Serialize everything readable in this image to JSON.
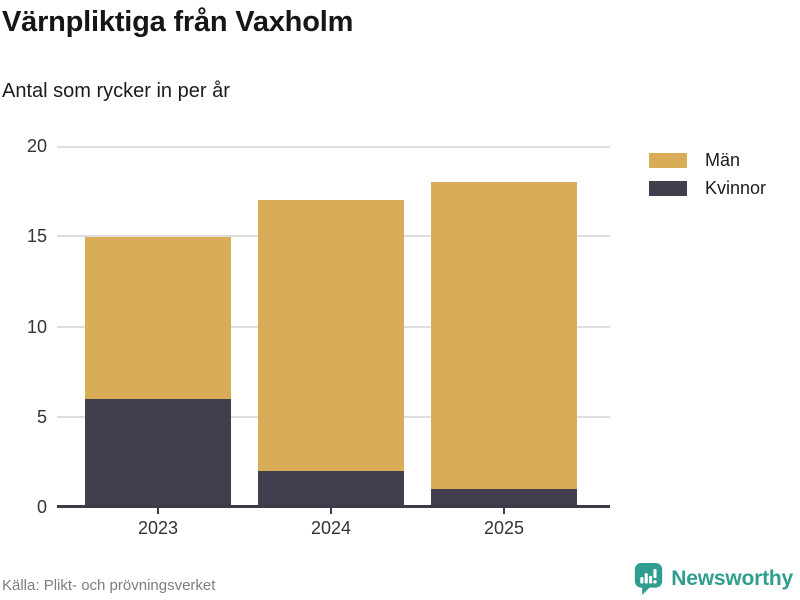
{
  "chart_data": {
    "type": "bar",
    "stacked": true,
    "title": "Värnpliktiga från Vaxholm",
    "subtitle": "Antal som rycker in per år",
    "categories": [
      "2023",
      "2024",
      "2025"
    ],
    "series": [
      {
        "name": "Män",
        "color": "#D9AC57",
        "values": [
          9,
          15,
          17
        ]
      },
      {
        "name": "Kvinnor",
        "color": "#413F4E",
        "values": [
          6,
          2,
          1
        ]
      }
    ],
    "stack_totals": [
      15,
      17,
      18
    ],
    "xlabel": "",
    "ylabel": "",
    "ylim": [
      0,
      20
    ],
    "yticks": [
      0,
      5,
      10,
      15,
      20
    ],
    "grid": true,
    "legend_position": "top-right",
    "colors": {
      "grid": "#DEDEDE",
      "axis": "#3C3B49",
      "tick_label": "#333333"
    }
  },
  "legend": {
    "items": [
      {
        "label": "Män",
        "color": "#D9AC57"
      },
      {
        "label": "Kvinnor",
        "color": "#413F4E"
      }
    ]
  },
  "footer": {
    "source": "Källa: Plikt- och prövningsverket",
    "brand_name": "Newsworthy",
    "brand_color": "#2F9E8E",
    "brand_icon": "bar-chart-speech-bubble-icon"
  }
}
